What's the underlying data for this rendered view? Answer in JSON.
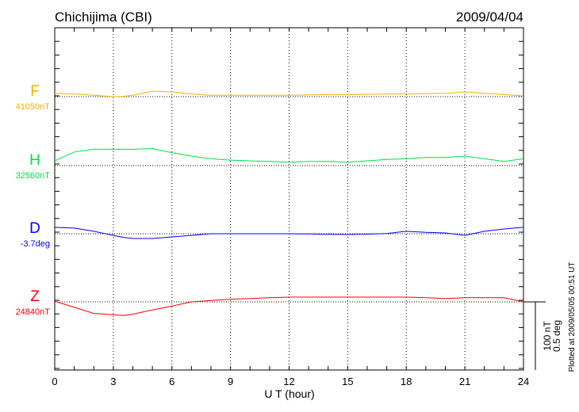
{
  "chart_data": {
    "type": "line",
    "title": "Chichijima (CBI)",
    "date": "2009/04/04",
    "xlabel": "U T (hour)",
    "xlim": [
      0,
      24
    ],
    "xticks": [
      "0",
      "3",
      "6",
      "9",
      "12",
      "15",
      "18",
      "21",
      "24"
    ],
    "grid": "dotted vertical every 3 hours",
    "scale_bar": {
      "label_nT": "100 nT",
      "label_deg": "0.5 deg",
      "nT": 100,
      "deg": 0.5
    },
    "footer": "Plotted at 2009/05/05 00:51 UT",
    "x": [
      0,
      1,
      2,
      3,
      3.5,
      4,
      5,
      6,
      7,
      8,
      9,
      10,
      11,
      12,
      13,
      14,
      15,
      16,
      17,
      18,
      19,
      20,
      21,
      22,
      23,
      24
    ],
    "series": [
      {
        "name": "F",
        "baseline_label": "41050nT",
        "baseline": 41050,
        "unit": "nT",
        "color": "#f5b000",
        "values": [
          41054.6,
          41054,
          41052,
          41050,
          41050.5,
          41052,
          41058,
          41057,
          41054,
          41052,
          41052,
          41052,
          41052,
          41052,
          41052.5,
          41053,
          41053,
          41053.5,
          41054,
          41054,
          41054.5,
          41055,
          41057,
          41055,
          41053,
          41051
        ]
      },
      {
        "name": "H",
        "baseline_label": "32560nT",
        "baseline": 32560,
        "unit": "nT",
        "color": "#00e040",
        "values": [
          32567,
          32580,
          32584,
          32584,
          32584,
          32584,
          32585,
          32579,
          32574,
          32570,
          32568,
          32567,
          32566,
          32565,
          32566,
          32566,
          32565,
          32567,
          32569,
          32570,
          32572,
          32572,
          32574,
          32570,
          32566,
          32570
        ]
      },
      {
        "name": "D",
        "baseline_label": "-3.7deg",
        "baseline": -3.7,
        "unit": "deg",
        "color": "#0000ff",
        "values": [
          -3.653,
          -3.659,
          -3.682,
          -3.712,
          -3.726,
          -3.735,
          -3.735,
          -3.723,
          -3.712,
          -3.7,
          -3.7,
          -3.7,
          -3.7,
          -3.7,
          -3.702,
          -3.704,
          -3.706,
          -3.703,
          -3.698,
          -3.682,
          -3.69,
          -3.694,
          -3.712,
          -3.682,
          -3.665,
          -3.653
        ]
      },
      {
        "name": "Z",
        "baseline_label": "24840nT",
        "baseline": 24840,
        "unit": "nT",
        "color": "#ff0000",
        "values": [
          24841,
          24832,
          24823,
          24821,
          24820,
          24822,
          24828,
          24834,
          24840,
          24842,
          24844,
          24845,
          24846,
          24847,
          24847,
          24847,
          24847,
          24847,
          24847,
          24847,
          24846,
          24845,
          24846,
          24846,
          24846,
          24840
        ]
      }
    ]
  }
}
